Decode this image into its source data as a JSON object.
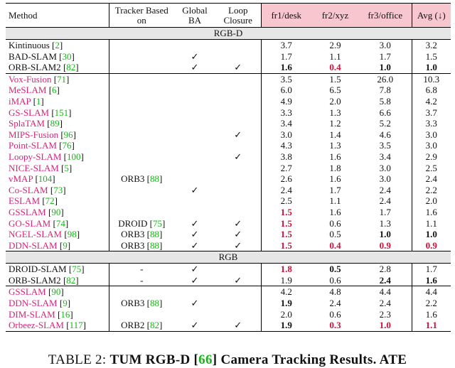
{
  "header": {
    "method": "Method",
    "tracker": "Tracker Based on",
    "global_ba": "Global BA",
    "loop_closure": "Loop Closure",
    "fr1": "fr1/desk",
    "fr2": "fr2/xyz",
    "fr3": "fr3/office",
    "avg": "Avg (↓)"
  },
  "sections": [
    {
      "title": "RGB-D",
      "groups": [
        [
          {
            "name": "Kintinuous",
            "ref": "2",
            "pink": false,
            "tracker": "",
            "tref": "",
            "ba": false,
            "lc": false,
            "fr1": "3.7",
            "fr2": "2.9",
            "fr3": "3.0",
            "avg": "3.2"
          },
          {
            "name": "BAD-SLAM",
            "ref": "30",
            "pink": false,
            "tracker": "",
            "tref": "",
            "ba": true,
            "lc": false,
            "fr1": "1.7",
            "fr2": "1.1",
            "fr3": "1.7",
            "avg": "1.5"
          },
          {
            "name": "ORB-SLAM2",
            "ref": "82",
            "pink": false,
            "tracker": "",
            "tref": "",
            "ba": true,
            "lc": true,
            "fr1": "1.6",
            "fr2": "0.4",
            "fr3": "1.0",
            "avg": "1.0",
            "b1": "bold",
            "b2": "red",
            "b3": "bold",
            "b4": "bold"
          }
        ],
        [
          {
            "name": "Vox-Fusion",
            "ref": "71",
            "pink": true,
            "tracker": "",
            "tref": "",
            "ba": false,
            "lc": false,
            "fr1": "3.5",
            "fr2": "1.5",
            "fr3": "26.0",
            "avg": "10.3"
          },
          {
            "name": "MeSLAM",
            "ref": "6",
            "pink": true,
            "tracker": "",
            "tref": "",
            "ba": false,
            "lc": false,
            "fr1": "6.0",
            "fr2": "6.5",
            "fr3": "7.8",
            "avg": "6.8"
          },
          {
            "name": "iMAP",
            "ref": "1",
            "pink": true,
            "tracker": "",
            "tref": "",
            "ba": false,
            "lc": false,
            "fr1": "4.9",
            "fr2": "2.0",
            "fr3": "5.8",
            "avg": "4.2"
          },
          {
            "name": "GS-SLAM",
            "ref": "151",
            "pink": true,
            "tracker": "",
            "tref": "",
            "ba": false,
            "lc": false,
            "fr1": "3.3",
            "fr2": "1.3",
            "fr3": "6.6",
            "avg": "3.7"
          },
          {
            "name": "SplaTAM",
            "ref": "89",
            "pink": true,
            "tracker": "",
            "tref": "",
            "ba": false,
            "lc": false,
            "fr1": "3.4",
            "fr2": "1.2",
            "fr3": "5.2",
            "avg": "3.3"
          },
          {
            "name": "MIPS-Fusion",
            "ref": "96",
            "pink": true,
            "tracker": "",
            "tref": "",
            "ba": false,
            "lc": true,
            "fr1": "3.0",
            "fr2": "1.4",
            "fr3": "4.6",
            "avg": "3.0"
          },
          {
            "name": "Point-SLAM",
            "ref": "76",
            "pink": true,
            "tracker": "",
            "tref": "",
            "ba": false,
            "lc": false,
            "fr1": "4.3",
            "fr2": "1.3",
            "fr3": "3.5",
            "avg": "3.0"
          },
          {
            "name": "Loopy-SLAM",
            "ref": "100",
            "pink": true,
            "tracker": "",
            "tref": "",
            "ba": false,
            "lc": true,
            "fr1": "3.8",
            "fr2": "1.6",
            "fr3": "3.4",
            "avg": "2.9"
          },
          {
            "name": "NICE-SLAM",
            "ref": "5",
            "pink": true,
            "tracker": "",
            "tref": "",
            "ba": false,
            "lc": false,
            "fr1": "2.7",
            "fr2": "1.8",
            "fr3": "3.0",
            "avg": "2.5"
          },
          {
            "name": "vMAP",
            "ref": "104",
            "pink": true,
            "tracker": "ORB3",
            "tref": "88",
            "ba": false,
            "lc": false,
            "fr1": "2.6",
            "fr2": "1.6",
            "fr3": "3.0",
            "avg": "2.4"
          },
          {
            "name": "Co-SLAM",
            "ref": "73",
            "pink": true,
            "tracker": "",
            "tref": "",
            "ba": true,
            "lc": false,
            "fr1": "2.4",
            "fr2": "1.7",
            "fr3": "2.4",
            "avg": "2.2"
          },
          {
            "name": "ESLAM",
            "ref": "72",
            "pink": true,
            "tracker": "",
            "tref": "",
            "ba": false,
            "lc": false,
            "fr1": "2.5",
            "fr2": "1.1",
            "fr3": "2.4",
            "avg": "2.0"
          },
          {
            "name": "GSSLAM",
            "ref": "90",
            "pink": true,
            "tracker": "",
            "tref": "",
            "ba": false,
            "lc": false,
            "fr1": "1.5",
            "fr2": "1.6",
            "fr3": "1.7",
            "avg": "1.6",
            "b1": "red"
          },
          {
            "name": "GO-SLAM",
            "ref": "74",
            "pink": true,
            "tracker": "DROID",
            "tref": "75",
            "ba": true,
            "lc": true,
            "fr1": "1.5",
            "fr2": "0.6",
            "fr3": "1.3",
            "avg": "1.1",
            "b1": "red"
          },
          {
            "name": "NGEL-SLAM",
            "ref": "98",
            "pink": true,
            "tracker": "ORB3",
            "tref": "88",
            "ba": true,
            "lc": true,
            "fr1": "1.5",
            "fr2": "0.5",
            "fr3": "1.0",
            "avg": "1.0",
            "b1": "red",
            "b3": "bold",
            "b4": "bold"
          },
          {
            "name": "DDN-SLAM",
            "ref": "9",
            "pink": true,
            "tracker": "ORB3",
            "tref": "88",
            "ba": true,
            "lc": true,
            "fr1": "1.5",
            "fr2": "0.4",
            "fr3": "0.9",
            "avg": "0.9",
            "b1": "red",
            "b2": "red",
            "b3": "red",
            "b4": "red"
          }
        ]
      ]
    },
    {
      "title": "RGB",
      "groups": [
        [
          {
            "name": "DROID-SLAM",
            "ref": "75",
            "pink": false,
            "tracker": "-",
            "tref": "",
            "ba": true,
            "lc": false,
            "fr1": "1.8",
            "fr2": "0.5",
            "fr3": "2.8",
            "avg": "1.7",
            "b1": "red",
            "b2": "bold"
          },
          {
            "name": "ORB-SLAM2",
            "ref": "82",
            "pink": false,
            "tracker": "-",
            "tref": "",
            "ba": true,
            "lc": true,
            "fr1": "1.9",
            "fr2": "0.6",
            "fr3": "2.4",
            "avg": "1.6",
            "b3": "bold",
            "b4": "bold"
          }
        ],
        [
          {
            "name": "GSSLAM",
            "ref": "90",
            "pink": true,
            "tracker": "",
            "tref": "",
            "ba": false,
            "lc": false,
            "fr1": "4.2",
            "fr2": "4.8",
            "fr3": "4.4",
            "avg": "4.4"
          },
          {
            "name": "DDN-SLAM",
            "ref": "9",
            "pink": true,
            "tracker": "ORB3",
            "tref": "88",
            "ba": true,
            "lc": false,
            "fr1": "1.9",
            "fr2": "2.4",
            "fr3": "2.4",
            "avg": "2.2",
            "b1": "bold"
          },
          {
            "name": "DIM-SLAM",
            "ref": "16",
            "pink": true,
            "tracker": "",
            "tref": "",
            "ba": false,
            "lc": false,
            "fr1": "2.0",
            "fr2": "0.6",
            "fr3": "2.3",
            "avg": "1.6"
          },
          {
            "name": "Orbeez-SLAM",
            "ref": "117",
            "pink": true,
            "tracker": "ORB2",
            "tref": "82",
            "ba": true,
            "lc": true,
            "fr1": "1.9",
            "fr2": "0.3",
            "fr3": "1.0",
            "avg": "1.1",
            "b1": "bold",
            "b2": "red",
            "b3": "red",
            "b4": "red"
          }
        ]
      ]
    }
  ],
  "check_mark": "✓",
  "caption": {
    "prefix": "TABLE 2: ",
    "title": "TUM RGB-D [",
    "ref": "66",
    "suffix": "] Camera Tracking Results. ATE"
  }
}
